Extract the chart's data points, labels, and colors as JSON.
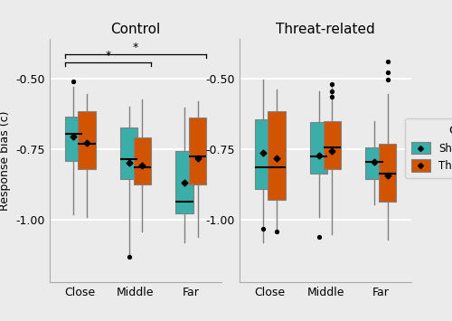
{
  "title_left": "Control",
  "title_right": "Threat-related",
  "ylabel": "Response bias (c)",
  "ylim": [
    -1.22,
    -0.36
  ],
  "yticks": [
    -1.0,
    -0.75,
    -0.5
  ],
  "ytick_labels": [
    "-1.00",
    "-0.75",
    "-0.50"
  ],
  "categories": [
    "Close",
    "Middle",
    "Far"
  ],
  "color_green": "#3aafa9",
  "color_orange": "#d35400",
  "bg_color": "#ebebeb",
  "grid_color": "#ffffff",
  "control_green": {
    "Close": {
      "q1": -0.79,
      "med": -0.695,
      "q3": -0.635,
      "mean": -0.705,
      "whislo": -0.98,
      "whishi": -0.53,
      "fliers": [
        -0.51
      ]
    },
    "Middle": {
      "q1": -0.855,
      "med": -0.785,
      "q3": -0.675,
      "mean": -0.798,
      "whislo": -1.13,
      "whishi": -0.6,
      "fliers": [
        -1.13
      ]
    },
    "Far": {
      "q1": -0.975,
      "med": -0.935,
      "q3": -0.755,
      "mean": -0.868,
      "whislo": -1.08,
      "whishi": -0.605,
      "fliers": []
    }
  },
  "control_orange": {
    "Close": {
      "q1": -0.82,
      "med": -0.73,
      "q3": -0.615,
      "mean": -0.727,
      "whislo": -0.99,
      "whishi": -0.555,
      "fliers": []
    },
    "Middle": {
      "q1": -0.875,
      "med": -0.815,
      "q3": -0.71,
      "mean": -0.808,
      "whislo": -1.04,
      "whishi": -0.575,
      "fliers": []
    },
    "Far": {
      "q1": -0.875,
      "med": -0.775,
      "q3": -0.64,
      "mean": -0.782,
      "whislo": -1.06,
      "whishi": -0.58,
      "fliers": []
    }
  },
  "threat_green": {
    "Close": {
      "q1": -0.89,
      "med": -0.815,
      "q3": -0.645,
      "mean": -0.762,
      "whislo": -1.08,
      "whishi": -0.505,
      "fliers": [
        -1.03
      ]
    },
    "Middle": {
      "q1": -0.835,
      "med": -0.775,
      "q3": -0.655,
      "mean": -0.773,
      "whislo": -0.99,
      "whishi": -0.545,
      "fliers": [
        -1.06
      ]
    },
    "Far": {
      "q1": -0.855,
      "med": -0.795,
      "q3": -0.745,
      "mean": -0.795,
      "whislo": -0.945,
      "whishi": -0.65,
      "fliers": []
    }
  },
  "threat_orange": {
    "Close": {
      "q1": -0.93,
      "med": -0.815,
      "q3": -0.615,
      "mean": -0.782,
      "whislo": -1.04,
      "whishi": -0.54,
      "fliers": [
        -1.04
      ]
    },
    "Middle": {
      "q1": -0.82,
      "med": -0.745,
      "q3": -0.65,
      "mean": -0.757,
      "whislo": -1.05,
      "whishi": -0.52,
      "fliers": [
        -0.52,
        -0.545,
        -0.565
      ]
    },
    "Far": {
      "q1": -0.935,
      "med": -0.835,
      "q3": -0.73,
      "mean": -0.842,
      "whislo": -1.07,
      "whishi": -0.555,
      "fliers": [
        -0.44,
        -0.48,
        -0.505
      ]
    }
  },
  "sig_brackets": [
    {
      "cat1_idx": 0,
      "cat2_idx": 1,
      "label": "*",
      "level": 1
    },
    {
      "cat1_idx": 0,
      "cat2_idx": 2,
      "label": "*",
      "level": 2
    }
  ]
}
